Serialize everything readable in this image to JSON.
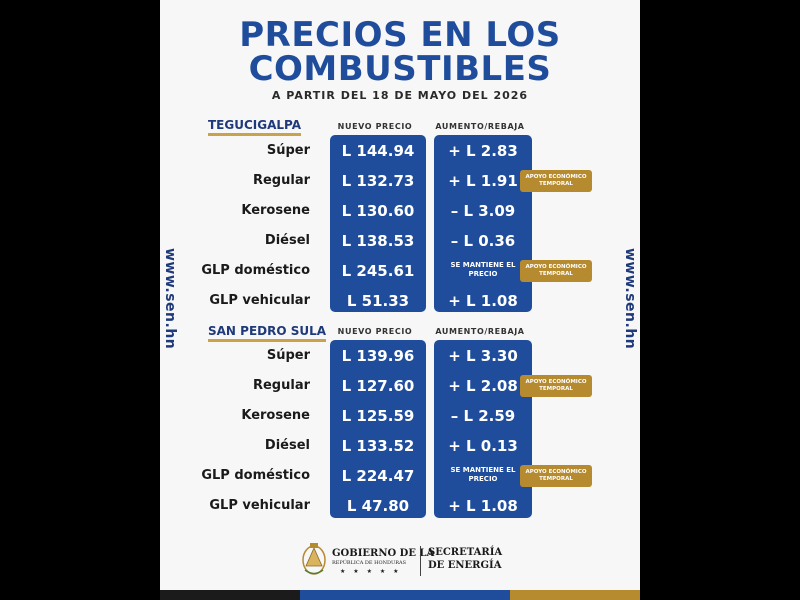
{
  "title_line1": "PRECIOS EN LOS",
  "title_line2": "COMBUSTIBLES",
  "subtitle": "A PARTIR DEL 18 DE MAYO DEL 2026",
  "website": "www.sen.hn",
  "column_headers": {
    "price": "NUEVO PRECIO",
    "change": "AUMENTO/REBAJA"
  },
  "badge_text": "APOYO ECONÓMICO TEMPORAL",
  "sections": [
    {
      "city": "TEGUCIGALPA",
      "rows": [
        {
          "fuel": "Súper",
          "price": "L 144.94",
          "change": "+ L 2.83"
        },
        {
          "fuel": "Regular",
          "price": "L 132.73",
          "change": "+ L 1.91"
        },
        {
          "fuel": "Kerosene",
          "price": "L 130.60",
          "change": "– L 3.09"
        },
        {
          "fuel": "Diésel",
          "price": "L 138.53",
          "change": "– L 0.36"
        },
        {
          "fuel": "GLP doméstico",
          "price": "L 245.61",
          "change": "SE MANTIENE EL PRECIO"
        },
        {
          "fuel": "GLP vehicular",
          "price": "L  51.33",
          "change": "+ L 1.08"
        }
      ]
    },
    {
      "city": "SAN PEDRO SULA",
      "rows": [
        {
          "fuel": "Súper",
          "price": "L 139.96",
          "change": "+ L 3.30"
        },
        {
          "fuel": "Regular",
          "price": "L 127.60",
          "change": "+ L 2.08"
        },
        {
          "fuel": "Kerosene",
          "price": "L 125.59",
          "change": "– L 2.59"
        },
        {
          "fuel": "Diésel",
          "price": "L 133.52",
          "change": "+ L 0.13"
        },
        {
          "fuel": "GLP doméstico",
          "price": "L 224.47",
          "change": "SE MANTIENE EL PRECIO"
        },
        {
          "fuel": "GLP vehicular",
          "price": "L  47.80",
          "change": "+ L 1.08"
        }
      ]
    }
  ],
  "footer": {
    "gov_line1": "GOBIERNO DE LA",
    "gov_line2": "REPÚBLICA DE HONDURAS",
    "stars": "★ ★ ★ ★ ★",
    "secretaria_line1": "SECRETARÍA",
    "secretaria_line2": "DE ENERGÍA"
  },
  "colors": {
    "blue": "#1f4d9c",
    "gold": "#b68a2e"
  }
}
